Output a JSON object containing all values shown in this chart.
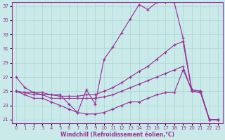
{
  "xlabel": "Windchill (Refroidissement éolien,°C)",
  "xlim": [
    -0.5,
    23.5
  ],
  "ylim": [
    20.5,
    37.5
  ],
  "xticks": [
    0,
    1,
    2,
    3,
    4,
    5,
    6,
    7,
    8,
    9,
    10,
    11,
    12,
    13,
    14,
    15,
    16,
    17,
    18,
    19,
    20,
    21,
    22,
    23
  ],
  "yticks": [
    21,
    23,
    25,
    27,
    29,
    31,
    33,
    35,
    37
  ],
  "background_color": "#caeaea",
  "grid_color": "#aad4d4",
  "line_color": "#993399",
  "line1_y": [
    27,
    25.5,
    24.8,
    24.5,
    24.5,
    24.5,
    23.2,
    22.0,
    25.2,
    23.2,
    29.5,
    31.2,
    33.2,
    35.2,
    37.2,
    36.5,
    37.5,
    37.5,
    37.5,
    32.5,
    25.2,
    25.0,
    21.0,
    21.0
  ],
  "line2_y": [
    25.0,
    24.8,
    24.8,
    24.8,
    24.5,
    24.3,
    24.3,
    24.3,
    24.5,
    24.5,
    25.0,
    25.5,
    26.2,
    27.0,
    27.8,
    28.5,
    29.5,
    30.5,
    31.5,
    32.0,
    25.0,
    24.8,
    21.0,
    21.0
  ],
  "line3_y": [
    25.0,
    24.8,
    24.5,
    24.5,
    24.0,
    24.0,
    24.0,
    24.0,
    24.0,
    24.0,
    24.2,
    24.5,
    25.0,
    25.5,
    26.0,
    26.5,
    27.0,
    27.5,
    28.0,
    28.5,
    25.0,
    24.8,
    21.0,
    21.0
  ],
  "line4_y": [
    25.0,
    24.5,
    24.0,
    24.0,
    23.5,
    23.0,
    22.5,
    22.0,
    21.8,
    21.8,
    22.0,
    22.5,
    23.0,
    23.5,
    23.5,
    24.0,
    24.5,
    24.8,
    24.8,
    28.0,
    25.2,
    25.0,
    21.0,
    21.0
  ]
}
